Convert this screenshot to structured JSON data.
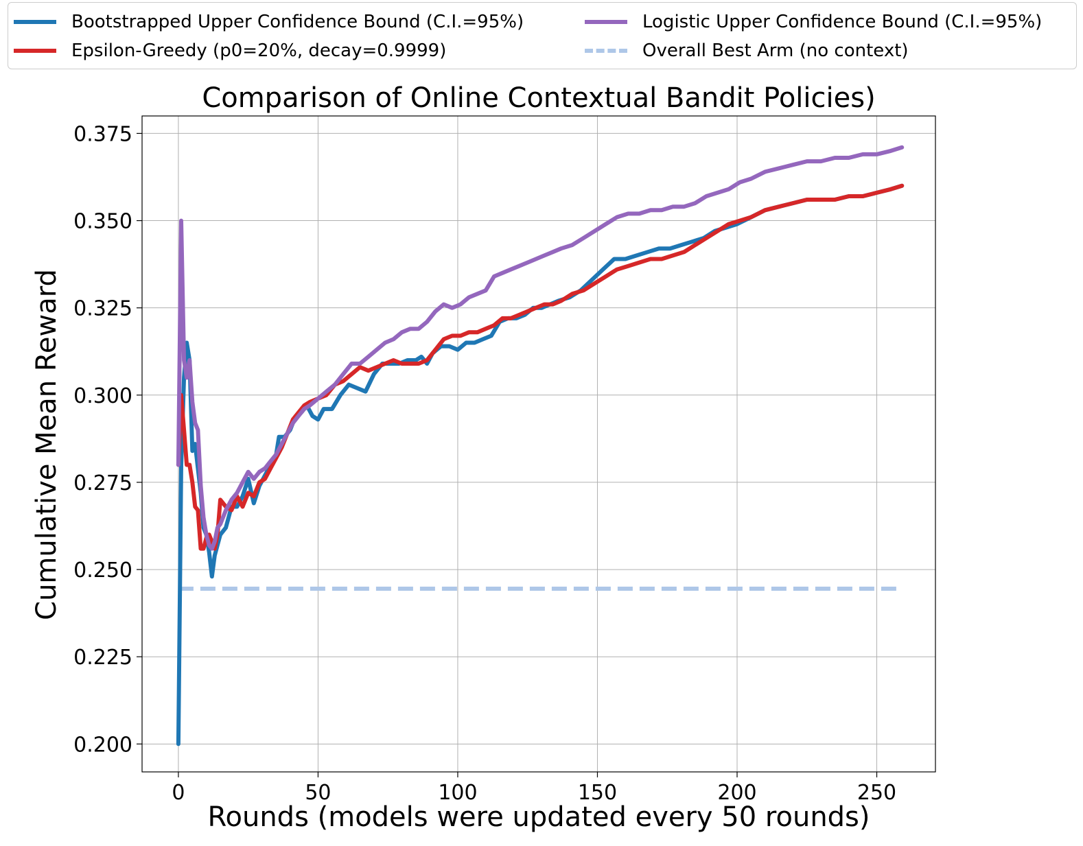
{
  "chart_data": {
    "type": "line",
    "title": "Comparison of Online Contextual Bandit Policies)",
    "xlabel": "Rounds (models were updated every 50 rounds)",
    "ylabel": "Cumulative Mean Reward",
    "xlim": [
      -13,
      271
    ],
    "ylim": [
      0.192,
      0.38
    ],
    "xticks": [
      0,
      50,
      100,
      150,
      200,
      250
    ],
    "yticks": [
      0.2,
      0.225,
      0.25,
      0.275,
      0.3,
      0.325,
      0.35,
      0.375
    ],
    "xtick_labels": [
      "0",
      "50",
      "100",
      "150",
      "200",
      "250"
    ],
    "ytick_labels": [
      "0.200",
      "0.225",
      "0.250",
      "0.275",
      "0.300",
      "0.325",
      "0.350",
      "0.375"
    ],
    "grid": true,
    "legend_position": "top, above plot, 2 columns",
    "series": [
      {
        "name": "Bootstrapped Upper Confidence Bound (C.I.=95%)",
        "color": "#1f77b4",
        "style": "solid",
        "points": [
          [
            0,
            0.2
          ],
          [
            1,
            0.28
          ],
          [
            2,
            0.305
          ],
          [
            3,
            0.315
          ],
          [
            4,
            0.31
          ],
          [
            5,
            0.284
          ],
          [
            6,
            0.286
          ],
          [
            7,
            0.279
          ],
          [
            8,
            0.272
          ],
          [
            9,
            0.262
          ],
          [
            10,
            0.26
          ],
          [
            11,
            0.255
          ],
          [
            12,
            0.248
          ],
          [
            13,
            0.254
          ],
          [
            14,
            0.257
          ],
          [
            15,
            0.26
          ],
          [
            17,
            0.262
          ],
          [
            19,
            0.268
          ],
          [
            21,
            0.268
          ],
          [
            23,
            0.271
          ],
          [
            25,
            0.276
          ],
          [
            27,
            0.269
          ],
          [
            29,
            0.274
          ],
          [
            31,
            0.277
          ],
          [
            33,
            0.28
          ],
          [
            35,
            0.283
          ],
          [
            36,
            0.288
          ],
          [
            38,
            0.288
          ],
          [
            40,
            0.29
          ],
          [
            42,
            0.294
          ],
          [
            44,
            0.295
          ],
          [
            46,
            0.297
          ],
          [
            48,
            0.294
          ],
          [
            50,
            0.293
          ],
          [
            52,
            0.296
          ],
          [
            55,
            0.296
          ],
          [
            58,
            0.3
          ],
          [
            61,
            0.303
          ],
          [
            64,
            0.302
          ],
          [
            67,
            0.301
          ],
          [
            70,
            0.306
          ],
          [
            73,
            0.309
          ],
          [
            76,
            0.309
          ],
          [
            79,
            0.309
          ],
          [
            82,
            0.31
          ],
          [
            85,
            0.31
          ],
          [
            87,
            0.311
          ],
          [
            89,
            0.309
          ],
          [
            91,
            0.312
          ],
          [
            94,
            0.314
          ],
          [
            97,
            0.314
          ],
          [
            100,
            0.313
          ],
          [
            103,
            0.315
          ],
          [
            106,
            0.315
          ],
          [
            109,
            0.316
          ],
          [
            112,
            0.317
          ],
          [
            115,
            0.321
          ],
          [
            118,
            0.322
          ],
          [
            121,
            0.322
          ],
          [
            124,
            0.323
          ],
          [
            127,
            0.325
          ],
          [
            130,
            0.325
          ],
          [
            133,
            0.326
          ],
          [
            136,
            0.327
          ],
          [
            140,
            0.328
          ],
          [
            144,
            0.33
          ],
          [
            148,
            0.333
          ],
          [
            152,
            0.336
          ],
          [
            156,
            0.339
          ],
          [
            160,
            0.339
          ],
          [
            164,
            0.34
          ],
          [
            168,
            0.341
          ],
          [
            172,
            0.342
          ],
          [
            176,
            0.342
          ],
          [
            180,
            0.343
          ],
          [
            184,
            0.344
          ],
          [
            188,
            0.345
          ],
          [
            192,
            0.347
          ],
          [
            196,
            0.348
          ],
          [
            200,
            0.349
          ],
          [
            205,
            0.351
          ],
          [
            210,
            0.353
          ],
          [
            215,
            0.354
          ],
          [
            220,
            0.355
          ],
          [
            225,
            0.356
          ],
          [
            230,
            0.356
          ],
          [
            235,
            0.356
          ],
          [
            240,
            0.357
          ],
          [
            245,
            0.357
          ],
          [
            250,
            0.358
          ],
          [
            255,
            0.359
          ],
          [
            259,
            0.36
          ]
        ]
      },
      {
        "name": "Epsilon-Greedy (p0=20%, decay=0.9999)",
        "color": "#d62728",
        "style": "solid",
        "points": [
          [
            0,
            0.28
          ],
          [
            1,
            0.3
          ],
          [
            2,
            0.29
          ],
          [
            3,
            0.28
          ],
          [
            4,
            0.28
          ],
          [
            5,
            0.275
          ],
          [
            6,
            0.268
          ],
          [
            7,
            0.267
          ],
          [
            8,
            0.256
          ],
          [
            9,
            0.256
          ],
          [
            10,
            0.259
          ],
          [
            11,
            0.26
          ],
          [
            12,
            0.258
          ],
          [
            13,
            0.256
          ],
          [
            14,
            0.26
          ],
          [
            15,
            0.27
          ],
          [
            17,
            0.268
          ],
          [
            19,
            0.267
          ],
          [
            21,
            0.271
          ],
          [
            23,
            0.268
          ],
          [
            25,
            0.272
          ],
          [
            27,
            0.271
          ],
          [
            29,
            0.275
          ],
          [
            31,
            0.276
          ],
          [
            33,
            0.279
          ],
          [
            35,
            0.282
          ],
          [
            37,
            0.285
          ],
          [
            39,
            0.289
          ],
          [
            41,
            0.293
          ],
          [
            43,
            0.295
          ],
          [
            45,
            0.297
          ],
          [
            47,
            0.298
          ],
          [
            50,
            0.299
          ],
          [
            53,
            0.3
          ],
          [
            56,
            0.303
          ],
          [
            59,
            0.304
          ],
          [
            62,
            0.306
          ],
          [
            65,
            0.308
          ],
          [
            68,
            0.307
          ],
          [
            71,
            0.308
          ],
          [
            74,
            0.309
          ],
          [
            77,
            0.31
          ],
          [
            80,
            0.309
          ],
          [
            83,
            0.309
          ],
          [
            86,
            0.309
          ],
          [
            89,
            0.31
          ],
          [
            92,
            0.313
          ],
          [
            95,
            0.316
          ],
          [
            98,
            0.317
          ],
          [
            101,
            0.317
          ],
          [
            104,
            0.318
          ],
          [
            107,
            0.318
          ],
          [
            110,
            0.319
          ],
          [
            113,
            0.32
          ],
          [
            116,
            0.322
          ],
          [
            119,
            0.322
          ],
          [
            122,
            0.323
          ],
          [
            125,
            0.324
          ],
          [
            128,
            0.325
          ],
          [
            131,
            0.326
          ],
          [
            134,
            0.326
          ],
          [
            137,
            0.327
          ],
          [
            141,
            0.329
          ],
          [
            145,
            0.33
          ],
          [
            149,
            0.332
          ],
          [
            153,
            0.334
          ],
          [
            157,
            0.336
          ],
          [
            161,
            0.337
          ],
          [
            165,
            0.338
          ],
          [
            169,
            0.339
          ],
          [
            173,
            0.339
          ],
          [
            177,
            0.34
          ],
          [
            181,
            0.341
          ],
          [
            185,
            0.343
          ],
          [
            189,
            0.345
          ],
          [
            193,
            0.347
          ],
          [
            197,
            0.349
          ],
          [
            201,
            0.35
          ],
          [
            205,
            0.351
          ],
          [
            210,
            0.353
          ],
          [
            215,
            0.354
          ],
          [
            220,
            0.355
          ],
          [
            225,
            0.356
          ],
          [
            230,
            0.356
          ],
          [
            235,
            0.356
          ],
          [
            240,
            0.357
          ],
          [
            245,
            0.357
          ],
          [
            250,
            0.358
          ],
          [
            255,
            0.359
          ],
          [
            259,
            0.36
          ]
        ]
      },
      {
        "name": "Logistic Upper Confidence Bound (C.I.=95%)",
        "color": "#9467bd",
        "style": "solid",
        "points": [
          [
            0,
            0.28
          ],
          [
            1,
            0.35
          ],
          [
            2,
            0.31
          ],
          [
            3,
            0.305
          ],
          [
            4,
            0.31
          ],
          [
            5,
            0.298
          ],
          [
            6,
            0.292
          ],
          [
            7,
            0.29
          ],
          [
            8,
            0.274
          ],
          [
            9,
            0.265
          ],
          [
            10,
            0.26
          ],
          [
            11,
            0.257
          ],
          [
            12,
            0.256
          ],
          [
            13,
            0.258
          ],
          [
            14,
            0.262
          ],
          [
            15,
            0.263
          ],
          [
            17,
            0.267
          ],
          [
            19,
            0.27
          ],
          [
            21,
            0.272
          ],
          [
            23,
            0.275
          ],
          [
            25,
            0.278
          ],
          [
            27,
            0.276
          ],
          [
            29,
            0.278
          ],
          [
            31,
            0.279
          ],
          [
            33,
            0.281
          ],
          [
            35,
            0.283
          ],
          [
            37,
            0.286
          ],
          [
            39,
            0.289
          ],
          [
            41,
            0.292
          ],
          [
            43,
            0.294
          ],
          [
            45,
            0.296
          ],
          [
            47,
            0.297
          ],
          [
            50,
            0.299
          ],
          [
            53,
            0.301
          ],
          [
            56,
            0.303
          ],
          [
            59,
            0.306
          ],
          [
            62,
            0.309
          ],
          [
            65,
            0.309
          ],
          [
            68,
            0.311
          ],
          [
            71,
            0.313
          ],
          [
            74,
            0.315
          ],
          [
            77,
            0.316
          ],
          [
            80,
            0.318
          ],
          [
            83,
            0.319
          ],
          [
            86,
            0.319
          ],
          [
            89,
            0.321
          ],
          [
            92,
            0.324
          ],
          [
            95,
            0.326
          ],
          [
            98,
            0.325
          ],
          [
            101,
            0.326
          ],
          [
            104,
            0.328
          ],
          [
            107,
            0.329
          ],
          [
            110,
            0.33
          ],
          [
            113,
            0.334
          ],
          [
            116,
            0.335
          ],
          [
            119,
            0.336
          ],
          [
            122,
            0.337
          ],
          [
            125,
            0.338
          ],
          [
            128,
            0.339
          ],
          [
            131,
            0.34
          ],
          [
            134,
            0.341
          ],
          [
            137,
            0.342
          ],
          [
            141,
            0.343
          ],
          [
            145,
            0.345
          ],
          [
            149,
            0.347
          ],
          [
            153,
            0.349
          ],
          [
            157,
            0.351
          ],
          [
            161,
            0.352
          ],
          [
            165,
            0.352
          ],
          [
            169,
            0.353
          ],
          [
            173,
            0.353
          ],
          [
            177,
            0.354
          ],
          [
            181,
            0.354
          ],
          [
            185,
            0.355
          ],
          [
            189,
            0.357
          ],
          [
            193,
            0.358
          ],
          [
            197,
            0.359
          ],
          [
            201,
            0.361
          ],
          [
            205,
            0.362
          ],
          [
            210,
            0.364
          ],
          [
            215,
            0.365
          ],
          [
            220,
            0.366
          ],
          [
            225,
            0.367
          ],
          [
            230,
            0.367
          ],
          [
            235,
            0.368
          ],
          [
            240,
            0.368
          ],
          [
            245,
            0.369
          ],
          [
            250,
            0.369
          ],
          [
            255,
            0.37
          ],
          [
            259,
            0.371
          ]
        ]
      },
      {
        "name": "Overall Best Arm (no context)",
        "color": "#aec7e8",
        "style": "dashed",
        "points": [
          [
            0,
            0.2445
          ],
          [
            259,
            0.2445
          ]
        ]
      }
    ]
  }
}
